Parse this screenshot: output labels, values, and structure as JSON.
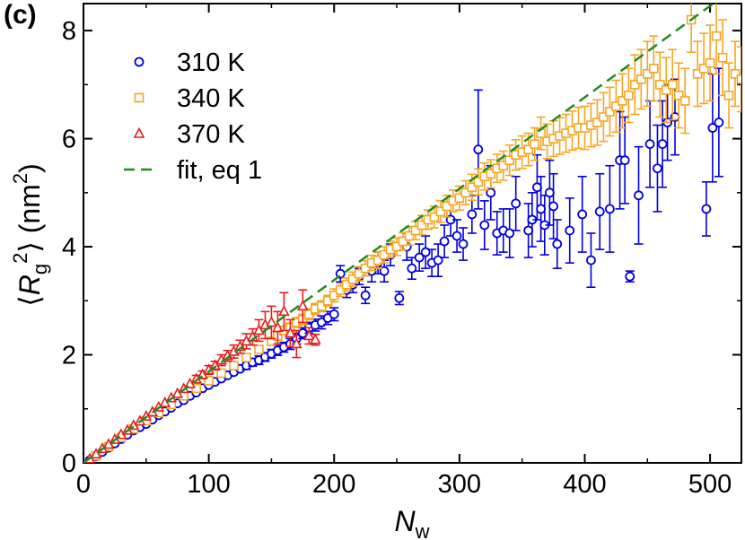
{
  "chart_data": {
    "type": "scatter",
    "panel_label": "(c)",
    "xlabel": {
      "main": "N",
      "sub": "w"
    },
    "ylabel": {
      "pre": "⟨",
      "main": "R",
      "sub": "g",
      "sup": "2",
      "post": "⟩ (nm",
      "unit_sup": "2",
      "end": ")"
    },
    "xlim": [
      0,
      525
    ],
    "ylim": [
      0,
      8.5
    ],
    "xticks": [
      0,
      100,
      200,
      300,
      400,
      500
    ],
    "xtick_labels": [
      "0",
      "100",
      "200",
      "300",
      "400",
      "500"
    ],
    "yticks": [
      0,
      2,
      4,
      6,
      8
    ],
    "ytick_labels": [
      "0",
      "2",
      "4",
      "6",
      "8"
    ],
    "grid": false,
    "legend_position": "top-left",
    "legend": [
      {
        "label": "310 K",
        "marker": "circle",
        "color": "#0000dd"
      },
      {
        "label": "340 K",
        "marker": "square",
        "color": "#f5a623"
      },
      {
        "label": "370 K",
        "marker": "triangle",
        "color": "#e81c1c"
      },
      {
        "label": "fit, eq 1",
        "marker": "dash",
        "color": "#228b22"
      }
    ],
    "fit": {
      "color": "#228b22",
      "x": [
        0,
        525
      ],
      "y": [
        0,
        8.88
      ]
    },
    "series": [
      {
        "name": "310 K",
        "marker": "circle",
        "color": "#0000dd",
        "points": [
          [
            5,
            0.05,
            0.01
          ],
          [
            10,
            0.12,
            0.02
          ],
          [
            15,
            0.2,
            0.02
          ],
          [
            20,
            0.28,
            0.02
          ],
          [
            25,
            0.36,
            0.02
          ],
          [
            30,
            0.44,
            0.02
          ],
          [
            35,
            0.52,
            0.02
          ],
          [
            40,
            0.6,
            0.03
          ],
          [
            45,
            0.66,
            0.03
          ],
          [
            50,
            0.72,
            0.03
          ],
          [
            55,
            0.8,
            0.03
          ],
          [
            60,
            0.88,
            0.03
          ],
          [
            65,
            0.95,
            0.03
          ],
          [
            70,
            1.02,
            0.04
          ],
          [
            75,
            1.1,
            0.04
          ],
          [
            80,
            1.16,
            0.04
          ],
          [
            85,
            1.24,
            0.04
          ],
          [
            90,
            1.3,
            0.05
          ],
          [
            95,
            1.38,
            0.05
          ],
          [
            100,
            1.44,
            0.05
          ],
          [
            105,
            1.5,
            0.05
          ],
          [
            110,
            1.56,
            0.06
          ],
          [
            115,
            1.62,
            0.06
          ],
          [
            120,
            1.68,
            0.06
          ],
          [
            125,
            1.74,
            0.06
          ],
          [
            130,
            1.8,
            0.07
          ],
          [
            135,
            1.86,
            0.07
          ],
          [
            140,
            1.9,
            0.08
          ],
          [
            145,
            1.96,
            0.08
          ],
          [
            150,
            2.02,
            0.08
          ],
          [
            155,
            2.08,
            0.09
          ],
          [
            160,
            2.14,
            0.09
          ],
          [
            165,
            2.2,
            0.1
          ],
          [
            170,
            2.3,
            0.1
          ],
          [
            175,
            2.4,
            0.1
          ],
          [
            180,
            2.5,
            0.1
          ],
          [
            185,
            2.55,
            0.11
          ],
          [
            190,
            2.6,
            0.12
          ],
          [
            195,
            2.68,
            0.12
          ],
          [
            200,
            2.75,
            0.12
          ],
          [
            205,
            3.5,
            0.15
          ],
          [
            210,
            3.2,
            0.14
          ],
          [
            215,
            3.3,
            0.15
          ],
          [
            220,
            3.45,
            0.15
          ],
          [
            225,
            3.1,
            0.15
          ],
          [
            230,
            3.55,
            0.2
          ],
          [
            235,
            3.7,
            0.2
          ],
          [
            240,
            3.55,
            0.2
          ],
          [
            245,
            3.85,
            0.2
          ],
          [
            252,
            3.05,
            0.12
          ],
          [
            258,
            4.0,
            0.25
          ],
          [
            262,
            3.6,
            0.2
          ],
          [
            268,
            3.8,
            0.25
          ],
          [
            273,
            3.9,
            0.3
          ],
          [
            278,
            3.7,
            0.25
          ],
          [
            283,
            3.75,
            0.3
          ],
          [
            288,
            4.1,
            0.3
          ],
          [
            293,
            4.5,
            0.3
          ],
          [
            298,
            4.2,
            0.3
          ],
          [
            303,
            4.05,
            0.3
          ],
          [
            310,
            4.6,
            0.35
          ],
          [
            315,
            5.8,
            1.1
          ],
          [
            320,
            4.4,
            0.45
          ],
          [
            325,
            5.0,
            0.5
          ],
          [
            330,
            4.25,
            0.4
          ],
          [
            335,
            4.3,
            0.4
          ],
          [
            340,
            4.25,
            0.45
          ],
          [
            345,
            4.8,
            0.5
          ],
          [
            355,
            4.3,
            0.5
          ],
          [
            358,
            4.5,
            0.5
          ],
          [
            362,
            5.1,
            0.6
          ],
          [
            365,
            4.7,
            0.6
          ],
          [
            368,
            4.4,
            0.55
          ],
          [
            372,
            5.0,
            0.6
          ],
          [
            375,
            4.75,
            0.6
          ],
          [
            378,
            4.05,
            0.45
          ],
          [
            388,
            4.3,
            0.6
          ],
          [
            398,
            4.6,
            0.7
          ],
          [
            405,
            3.75,
            0.5
          ],
          [
            412,
            4.65,
            0.7
          ],
          [
            420,
            4.7,
            0.8
          ],
          [
            428,
            5.6,
            0.9
          ],
          [
            432,
            5.6,
            0.8
          ],
          [
            436,
            3.45,
            0.1
          ],
          [
            443,
            4.95,
            0.9
          ],
          [
            452,
            5.9,
            0.8
          ],
          [
            458,
            5.45,
            0.8
          ],
          [
            462,
            5.9,
            0.8
          ],
          [
            466,
            6.3,
            0.7
          ],
          [
            472,
            6.4,
            0.7
          ],
          [
            497,
            4.7,
            0.5
          ],
          [
            502,
            6.2,
            1.0
          ],
          [
            507,
            6.3,
            1.0
          ]
        ]
      },
      {
        "name": "340 K",
        "marker": "square",
        "color": "#f5a623",
        "points": [
          [
            10,
            0.13,
            0.02
          ],
          [
            20,
            0.3,
            0.02
          ],
          [
            30,
            0.47,
            0.02
          ],
          [
            40,
            0.63,
            0.03
          ],
          [
            50,
            0.78,
            0.03
          ],
          [
            60,
            0.93,
            0.03
          ],
          [
            70,
            1.08,
            0.04
          ],
          [
            80,
            1.24,
            0.04
          ],
          [
            90,
            1.38,
            0.05
          ],
          [
            100,
            1.52,
            0.05
          ],
          [
            110,
            1.66,
            0.05
          ],
          [
            120,
            1.8,
            0.06
          ],
          [
            130,
            1.95,
            0.06
          ],
          [
            140,
            2.1,
            0.07
          ],
          [
            150,
            2.25,
            0.07
          ],
          [
            155,
            2.35,
            0.08
          ],
          [
            160,
            2.45,
            0.08
          ],
          [
            165,
            2.5,
            0.09
          ],
          [
            170,
            2.6,
            0.09
          ],
          [
            175,
            2.65,
            0.1
          ],
          [
            180,
            2.75,
            0.1
          ],
          [
            185,
            2.85,
            0.1
          ],
          [
            190,
            2.9,
            0.1
          ],
          [
            195,
            3.0,
            0.1
          ],
          [
            200,
            3.1,
            0.12
          ],
          [
            205,
            3.2,
            0.12
          ],
          [
            210,
            3.3,
            0.12
          ],
          [
            215,
            3.4,
            0.13
          ],
          [
            220,
            3.5,
            0.13
          ],
          [
            225,
            3.6,
            0.14
          ],
          [
            230,
            3.7,
            0.14
          ],
          [
            235,
            3.75,
            0.15
          ],
          [
            240,
            3.85,
            0.15
          ],
          [
            245,
            3.95,
            0.15
          ],
          [
            250,
            4.0,
            0.16
          ],
          [
            255,
            4.1,
            0.16
          ],
          [
            260,
            4.2,
            0.17
          ],
          [
            265,
            4.3,
            0.17
          ],
          [
            270,
            4.4,
            0.18
          ],
          [
            275,
            4.5,
            0.18
          ],
          [
            280,
            4.55,
            0.2
          ],
          [
            285,
            4.65,
            0.2
          ],
          [
            290,
            4.75,
            0.2
          ],
          [
            295,
            4.85,
            0.2
          ],
          [
            300,
            4.9,
            0.22
          ],
          [
            305,
            5.0,
            0.22
          ],
          [
            310,
            5.1,
            0.24
          ],
          [
            315,
            5.2,
            0.24
          ],
          [
            320,
            5.3,
            0.25
          ],
          [
            325,
            5.35,
            0.26
          ],
          [
            330,
            5.45,
            0.26
          ],
          [
            335,
            5.5,
            0.27
          ],
          [
            340,
            5.6,
            0.28
          ],
          [
            345,
            5.7,
            0.28
          ],
          [
            350,
            5.75,
            0.3
          ],
          [
            355,
            5.8,
            0.3
          ],
          [
            360,
            5.9,
            0.3
          ],
          [
            365,
            6.1,
            0.3
          ],
          [
            370,
            5.95,
            0.32
          ],
          [
            375,
            6.0,
            0.33
          ],
          [
            380,
            6.05,
            0.34
          ],
          [
            385,
            6.1,
            0.35
          ],
          [
            390,
            6.15,
            0.36
          ],
          [
            395,
            6.2,
            0.38
          ],
          [
            400,
            6.2,
            0.4
          ],
          [
            405,
            6.25,
            0.4
          ],
          [
            410,
            6.3,
            0.42
          ],
          [
            415,
            6.4,
            0.45
          ],
          [
            420,
            6.5,
            0.45
          ],
          [
            425,
            6.6,
            0.48
          ],
          [
            430,
            6.7,
            0.5
          ],
          [
            435,
            6.8,
            0.5
          ],
          [
            440,
            7.0,
            0.55
          ],
          [
            445,
            7.1,
            0.55
          ],
          [
            450,
            7.2,
            0.6
          ],
          [
            455,
            7.3,
            0.6
          ],
          [
            460,
            7.0,
            0.6
          ],
          [
            465,
            6.9,
            0.6
          ],
          [
            470,
            7.0,
            0.65
          ],
          [
            475,
            6.8,
            0.6
          ],
          [
            480,
            6.7,
            0.6
          ],
          [
            485,
            8.2,
            0.6
          ],
          [
            490,
            7.2,
            0.6
          ],
          [
            495,
            7.3,
            0.65
          ],
          [
            500,
            7.4,
            0.7
          ],
          [
            505,
            7.9,
            0.7
          ],
          [
            510,
            7.5,
            0.7
          ],
          [
            515,
            6.8,
            0.6
          ],
          [
            520,
            7.2,
            0.6
          ],
          [
            525,
            7.1,
            0.6
          ]
        ]
      },
      {
        "name": "370 K",
        "marker": "triangle",
        "color": "#e81c1c",
        "points": [
          [
            5,
            0.07,
            0.01
          ],
          [
            10,
            0.16,
            0.02
          ],
          [
            15,
            0.26,
            0.02
          ],
          [
            20,
            0.34,
            0.02
          ],
          [
            25,
            0.43,
            0.02
          ],
          [
            30,
            0.52,
            0.02
          ],
          [
            35,
            0.6,
            0.03
          ],
          [
            40,
            0.69,
            0.03
          ],
          [
            45,
            0.77,
            0.03
          ],
          [
            50,
            0.86,
            0.04
          ],
          [
            55,
            0.94,
            0.04
          ],
          [
            60,
            1.03,
            0.04
          ],
          [
            65,
            1.11,
            0.05
          ],
          [
            70,
            1.2,
            0.05
          ],
          [
            75,
            1.28,
            0.06
          ],
          [
            80,
            1.37,
            0.06
          ],
          [
            85,
            1.46,
            0.06
          ],
          [
            90,
            1.55,
            0.07
          ],
          [
            95,
            1.63,
            0.07
          ],
          [
            100,
            1.72,
            0.08
          ],
          [
            105,
            1.8,
            0.08
          ],
          [
            110,
            1.9,
            0.1
          ],
          [
            115,
            1.98,
            0.1
          ],
          [
            120,
            2.06,
            0.12
          ],
          [
            125,
            2.15,
            0.12
          ],
          [
            130,
            2.25,
            0.14
          ],
          [
            135,
            2.33,
            0.15
          ],
          [
            140,
            2.45,
            0.2
          ],
          [
            145,
            2.55,
            0.25
          ],
          [
            150,
            2.6,
            0.3
          ],
          [
            155,
            2.5,
            0.3
          ],
          [
            160,
            2.8,
            0.35
          ],
          [
            165,
            2.4,
            0.25
          ],
          [
            170,
            2.2,
            0.25
          ],
          [
            175,
            2.9,
            0.3
          ],
          [
            180,
            2.35,
            0.15
          ],
          [
            185,
            2.28,
            0.1
          ]
        ]
      }
    ]
  }
}
